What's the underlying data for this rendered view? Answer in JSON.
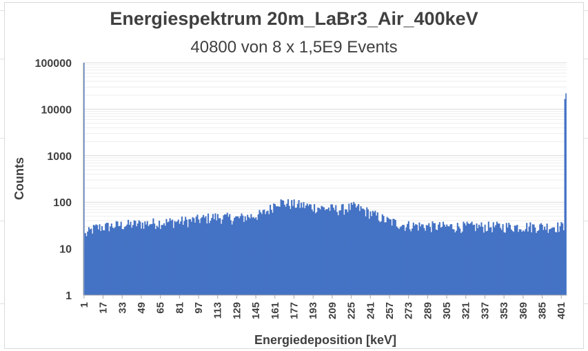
{
  "chart_data": {
    "type": "bar",
    "title": "Energiespektrum 20m_LaBr3_Air_400keV",
    "subtitle": "40800 von 8 x 1,5E9 Events",
    "xlabel": "Energiedeposition [keV]",
    "ylabel": "Counts",
    "y_scale": "log",
    "ylim": [
      1,
      100000
    ],
    "y_ticks": [
      "1",
      "10",
      "100",
      "1000",
      "10000",
      "100000"
    ],
    "x_tick_labels": [
      "1",
      "17",
      "33",
      "49",
      "65",
      "81",
      "97",
      "113",
      "129",
      "145",
      "161",
      "177",
      "193",
      "209",
      "225",
      "241",
      "257",
      "273",
      "289",
      "305",
      "321",
      "337",
      "353",
      "369",
      "385",
      "401"
    ],
    "x_range": [
      1,
      405
    ],
    "grid": true,
    "color": "#4472C4",
    "profile": [
      {
        "x": 1,
        "value": 100000
      },
      {
        "x": 2,
        "value": 20
      },
      {
        "x": 10,
        "value": 28
      },
      {
        "x": 30,
        "value": 32
      },
      {
        "x": 60,
        "value": 36
      },
      {
        "x": 90,
        "value": 40
      },
      {
        "x": 110,
        "value": 48
      },
      {
        "x": 130,
        "value": 45
      },
      {
        "x": 150,
        "value": 55
      },
      {
        "x": 158,
        "value": 75
      },
      {
        "x": 162,
        "value": 105
      },
      {
        "x": 170,
        "value": 95
      },
      {
        "x": 185,
        "value": 85
      },
      {
        "x": 200,
        "value": 75
      },
      {
        "x": 215,
        "value": 70
      },
      {
        "x": 228,
        "value": 80
      },
      {
        "x": 240,
        "value": 60
      },
      {
        "x": 255,
        "value": 40
      },
      {
        "x": 270,
        "value": 32
      },
      {
        "x": 300,
        "value": 30
      },
      {
        "x": 340,
        "value": 30
      },
      {
        "x": 380,
        "value": 30
      },
      {
        "x": 403,
        "value": 30
      },
      {
        "x": 404,
        "value": 22000
      }
    ]
  }
}
